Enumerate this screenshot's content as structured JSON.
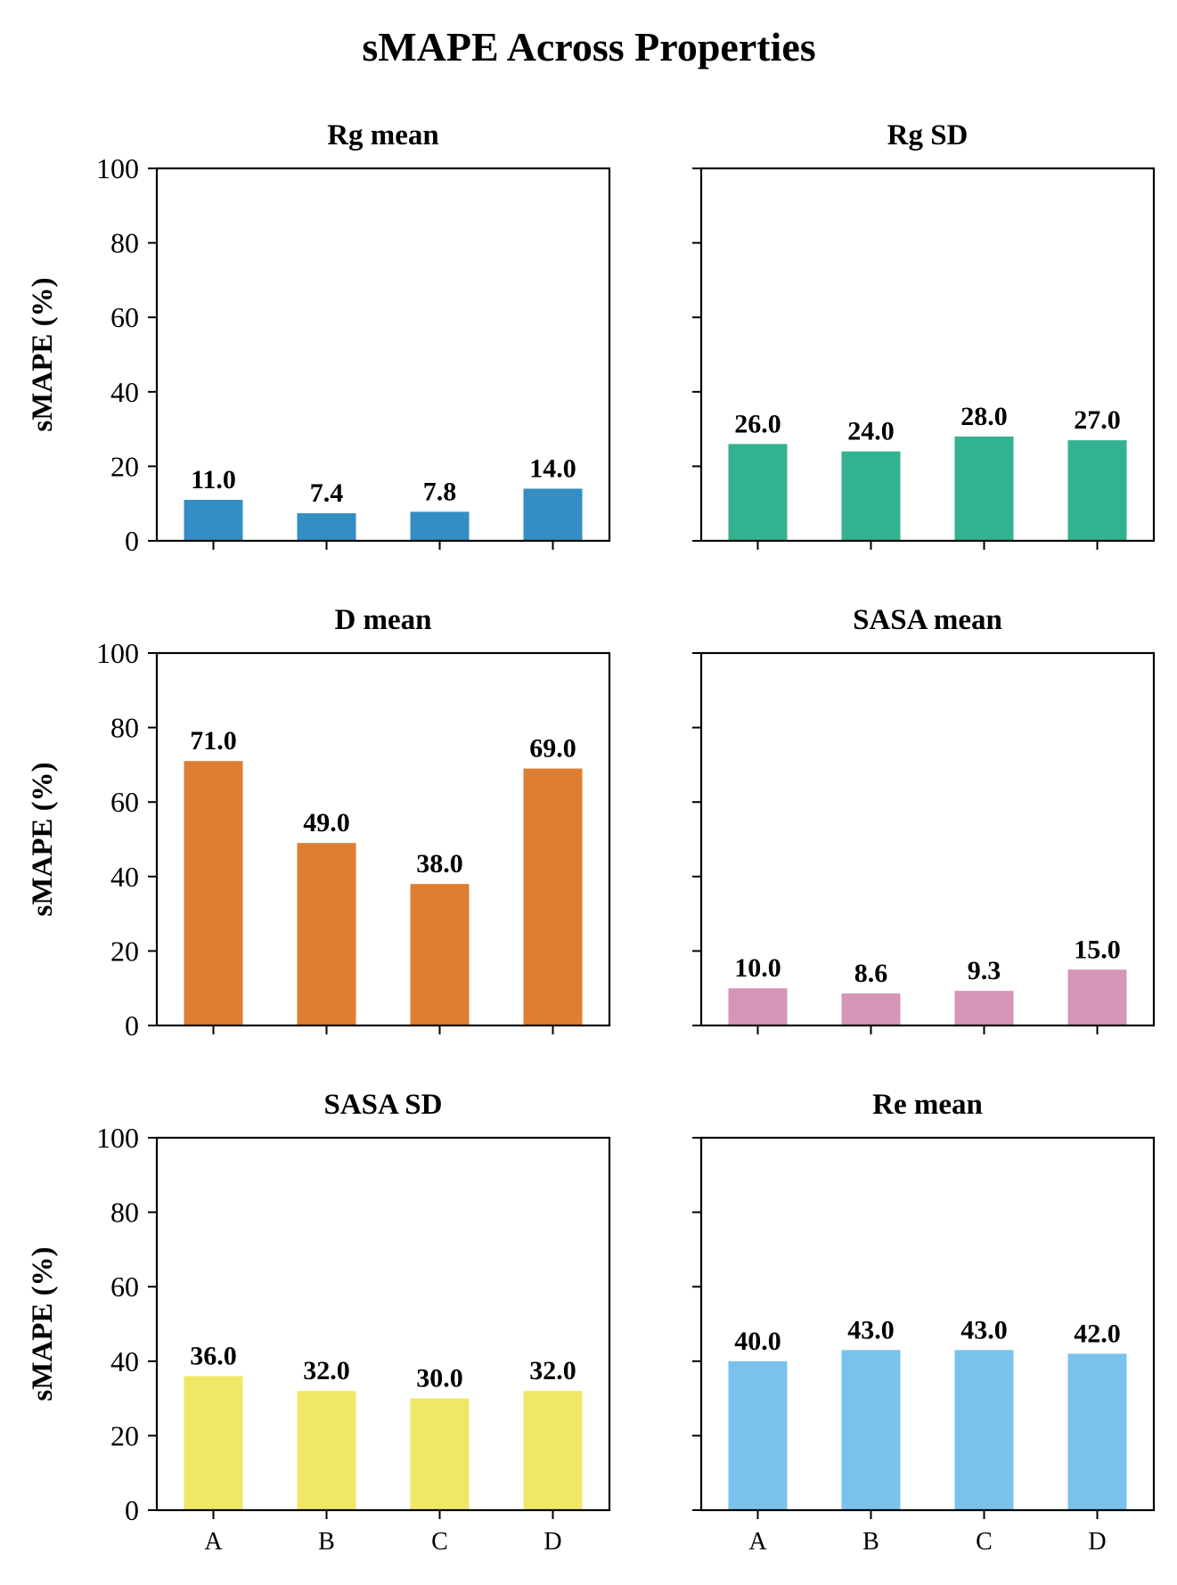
{
  "figure": {
    "title": "sMAPE Across Properties"
  },
  "chart_data": [
    {
      "type": "bar",
      "title": "Rg mean",
      "categories": [
        "A",
        "B",
        "C",
        "D"
      ],
      "values": [
        11.0,
        7.4,
        7.8,
        14.0
      ],
      "value_labels": [
        "11.0",
        "7.4",
        "7.8",
        "14.0"
      ],
      "ylabel": "sMAPE (%)",
      "ylim": [
        0,
        100
      ],
      "yticks": [
        "0",
        "20",
        "40",
        "60",
        "80",
        "100"
      ],
      "color": "#348ec4",
      "grid": false
    },
    {
      "type": "bar",
      "title": "Rg SD",
      "categories": [
        "A",
        "B",
        "C",
        "D"
      ],
      "values": [
        26.0,
        24.0,
        28.0,
        27.0
      ],
      "value_labels": [
        "26.0",
        "24.0",
        "28.0",
        "27.0"
      ],
      "ylabel": "",
      "ylim": [
        0,
        100
      ],
      "yticks": [],
      "color": "#33b28f",
      "grid": false
    },
    {
      "type": "bar",
      "title": "D mean",
      "categories": [
        "A",
        "B",
        "C",
        "D"
      ],
      "values": [
        71.0,
        49.0,
        38.0,
        69.0
      ],
      "value_labels": [
        "71.0",
        "49.0",
        "38.0",
        "69.0"
      ],
      "ylabel": "sMAPE (%)",
      "ylim": [
        0,
        100
      ],
      "yticks": [
        "0",
        "20",
        "40",
        "60",
        "80",
        "100"
      ],
      "color": "#de7e32",
      "grid": false
    },
    {
      "type": "bar",
      "title": "SASA mean",
      "categories": [
        "A",
        "B",
        "C",
        "D"
      ],
      "values": [
        10.0,
        8.6,
        9.3,
        15.0
      ],
      "value_labels": [
        "10.0",
        "8.6",
        "9.3",
        "15.0"
      ],
      "ylabel": "",
      "ylim": [
        0,
        100
      ],
      "yticks": [],
      "color": "#d595b9",
      "grid": false
    },
    {
      "type": "bar",
      "title": "SASA SD",
      "categories": [
        "A",
        "B",
        "C",
        "D"
      ],
      "values": [
        36.0,
        32.0,
        30.0,
        32.0
      ],
      "value_labels": [
        "36.0",
        "32.0",
        "30.0",
        "32.0"
      ],
      "ylabel": "sMAPE (%)",
      "ylim": [
        0,
        100
      ],
      "yticks": [
        "0",
        "20",
        "40",
        "60",
        "80",
        "100"
      ],
      "color": "#f0e766",
      "grid": false
    },
    {
      "type": "bar",
      "title": "Re mean",
      "categories": [
        "A",
        "B",
        "C",
        "D"
      ],
      "values": [
        40.0,
        43.0,
        43.0,
        42.0
      ],
      "value_labels": [
        "40.0",
        "43.0",
        "43.0",
        "42.0"
      ],
      "ylabel": "",
      "ylim": [
        0,
        100
      ],
      "yticks": [],
      "color": "#79c2eb",
      "grid": false
    }
  ]
}
